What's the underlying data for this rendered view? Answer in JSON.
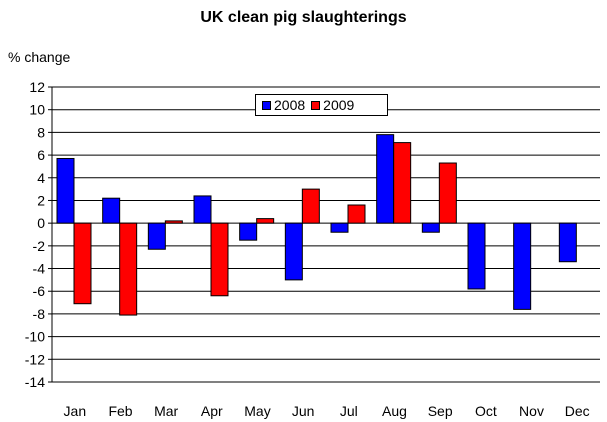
{
  "chart_data": {
    "type": "bar",
    "title": "UK clean pig slaughterings",
    "ylabel": "% change",
    "xlabel": "",
    "ylim": [
      -14,
      12
    ],
    "ytick_step": 2,
    "grid": true,
    "legend_position": "top-center",
    "categories": [
      "Jan",
      "Feb",
      "Mar",
      "Apr",
      "May",
      "Jun",
      "Jul",
      "Aug",
      "Sep",
      "Oct",
      "Nov",
      "Dec"
    ],
    "series": [
      {
        "name": "2008",
        "color": "#0000FF",
        "values": [
          5.7,
          2.2,
          -2.3,
          2.4,
          -1.5,
          -5.0,
          -0.8,
          7.8,
          -0.8,
          -5.8,
          -7.6,
          -3.4
        ]
      },
      {
        "name": "2009",
        "color": "#FF0000",
        "values": [
          -7.1,
          -8.1,
          0.2,
          -6.4,
          0.4,
          3.0,
          1.6,
          7.1,
          5.3,
          null,
          null,
          null
        ]
      }
    ]
  }
}
